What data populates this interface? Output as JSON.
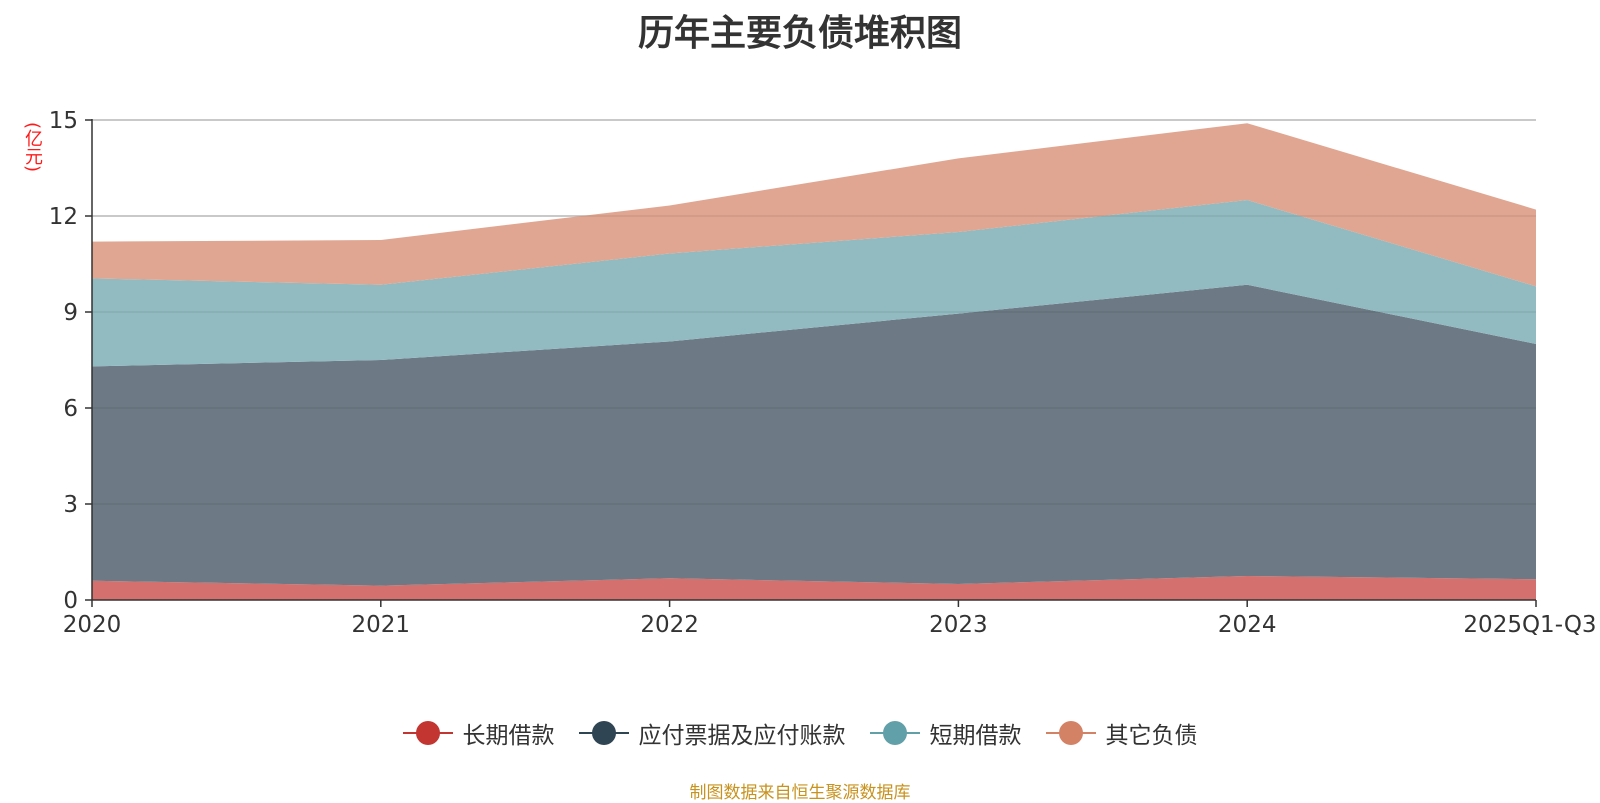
{
  "chart_data": {
    "type": "area",
    "stacked": true,
    "title": "历年主要负债堆积图",
    "ylabel": "(亿元)",
    "xlabel": "",
    "categories": [
      "2020",
      "2021",
      "2022",
      "2023",
      "2024",
      "2025Q1-Q3"
    ],
    "ylim": [
      0,
      15
    ],
    "yticks": [
      0,
      3,
      6,
      9,
      12,
      15
    ],
    "grid": true,
    "legend_position": "bottom",
    "series": [
      {
        "name": "长期借款",
        "color": "#c23531",
        "fill": "#d4706d",
        "values": [
          0.6,
          0.45,
          0.68,
          0.5,
          0.75,
          0.65
        ]
      },
      {
        "name": "应付票据及应付账款",
        "color": "#2f4554",
        "fill": "#6d7a85",
        "values": [
          6.7,
          7.05,
          7.4,
          8.45,
          9.1,
          7.35
        ]
      },
      {
        "name": "短期借款",
        "color": "#61a0a8",
        "fill": "#91bbc1",
        "values": [
          2.75,
          2.35,
          2.75,
          2.55,
          2.65,
          1.8
        ]
      },
      {
        "name": "其它负债",
        "color": "#d48265",
        "fill": "#e0a691",
        "values": [
          1.15,
          1.4,
          1.5,
          2.3,
          2.4,
          2.4
        ]
      }
    ]
  },
  "source_note": "制图数据来自恒生聚源数据库"
}
